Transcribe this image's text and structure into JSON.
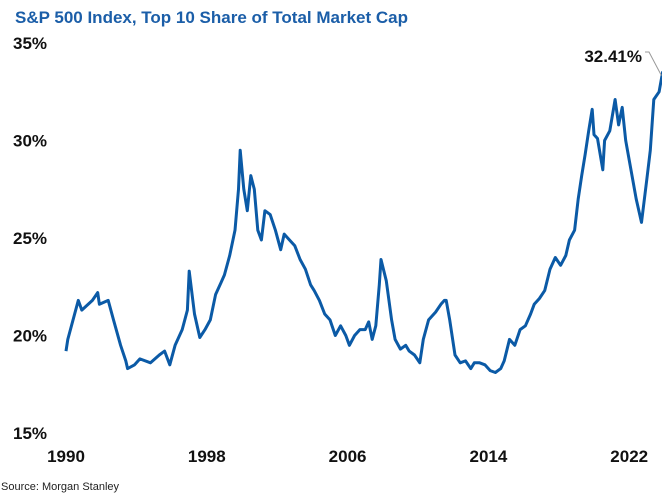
{
  "chart_data": {
    "type": "line",
    "title": "S&P 500 Index, Top 10 Share of Total Market Cap",
    "xlabel": "",
    "ylabel": "",
    "source": "Source: Morgan Stanley",
    "xlim": [
      1990,
      2024
    ],
    "ylim": [
      15,
      35
    ],
    "x_ticks": [
      "1990",
      "1998",
      "2006",
      "2014",
      "2022"
    ],
    "y_ticks": [
      "15%",
      "20%",
      "25%",
      "30%",
      "35%"
    ],
    "grid": false,
    "line_color": "#0b5aa6",
    "annotation": {
      "label": "32.41%",
      "x": 2024.0,
      "y": 32.41
    },
    "series": [
      {
        "x": [
          1990.0,
          1990.1,
          1990.7,
          1990.9,
          1991.5,
          1991.8,
          1991.9,
          1992.4,
          1992.7,
          1993.1,
          1993.4,
          1993.5,
          1993.9,
          1994.2,
          1994.8,
          1995.3,
          1995.6,
          1995.9,
          1996.2,
          1996.6,
          1996.9,
          1997.0,
          1997.3,
          1997.6,
          1997.9,
          1998.2,
          1998.5,
          1998.8,
          1999.0,
          1999.3,
          1999.6,
          1999.8,
          1999.9,
          2000.1,
          2000.3,
          2000.5,
          2000.7,
          2000.9,
          2001.1,
          2001.3,
          2001.6,
          2001.9,
          2002.2,
          2002.4,
          2002.7,
          2003.0,
          2003.3,
          2003.6,
          2003.9,
          2004.1,
          2004.4,
          2004.7,
          2005.0,
          2005.3,
          2005.6,
          2005.9,
          2006.1,
          2006.4,
          2006.7,
          2007.0,
          2007.2,
          2007.4,
          2007.6,
          2007.8,
          2007.9,
          2008.2,
          2008.5,
          2008.7,
          2009.0,
          2009.3,
          2009.5,
          2009.8,
          2010.1,
          2010.3,
          2010.6,
          2011.0,
          2011.3,
          2011.5,
          2011.6,
          2011.8,
          2012.1,
          2012.4,
          2012.7,
          2013.0,
          2013.2,
          2013.5,
          2013.8,
          2014.1,
          2014.4,
          2014.7,
          2014.9,
          2015.2,
          2015.5,
          2015.8,
          2016.1,
          2016.4,
          2016.6,
          2016.9,
          2017.2,
          2017.5,
          2017.8,
          2018.1,
          2018.4,
          2018.6,
          2018.9,
          2019.1,
          2019.3,
          2019.5,
          2019.7,
          2019.9,
          2020.0,
          2020.2,
          2020.5,
          2020.6,
          2020.9,
          2021.2,
          2021.4,
          2021.6,
          2021.8,
          2022.0,
          2022.4,
          2022.7,
          2023.0,
          2023.2,
          2023.4,
          2023.7,
          2023.9,
          2024.0
        ],
        "values": [
          19.2,
          19.8,
          21.8,
          21.3,
          21.8,
          22.2,
          21.6,
          21.8,
          20.8,
          19.5,
          18.7,
          18.3,
          18.5,
          18.8,
          18.6,
          19.0,
          19.2,
          18.5,
          19.5,
          20.3,
          21.3,
          23.3,
          21.1,
          19.9,
          20.3,
          20.8,
          22.1,
          22.7,
          23.1,
          24.1,
          25.4,
          27.5,
          29.5,
          27.5,
          26.4,
          28.2,
          27.5,
          25.4,
          24.9,
          26.4,
          26.2,
          25.4,
          24.4,
          25.2,
          24.9,
          24.6,
          23.9,
          23.4,
          22.6,
          22.3,
          21.8,
          21.1,
          20.8,
          20.0,
          20.5,
          20.0,
          19.5,
          20.0,
          20.3,
          20.3,
          20.7,
          19.8,
          20.5,
          22.6,
          23.9,
          22.8,
          20.8,
          19.8,
          19.3,
          19.5,
          19.2,
          19.0,
          18.6,
          19.8,
          20.8,
          21.2,
          21.6,
          21.8,
          21.8,
          20.8,
          19.0,
          18.6,
          18.7,
          18.3,
          18.6,
          18.6,
          18.5,
          18.2,
          18.1,
          18.3,
          18.7,
          19.8,
          19.5,
          20.3,
          20.5,
          21.1,
          21.6,
          21.9,
          22.3,
          23.4,
          24.0,
          23.6,
          24.1,
          24.9,
          25.4,
          27.0,
          28.2,
          29.3,
          30.5,
          31.6,
          30.3,
          30.1,
          28.5,
          30.0,
          30.5,
          32.1,
          30.8,
          31.7,
          30.0,
          29.0,
          27.0,
          25.8,
          28.0,
          29.5,
          32.1,
          32.5,
          33.5,
          32.41
        ]
      }
    ]
  }
}
